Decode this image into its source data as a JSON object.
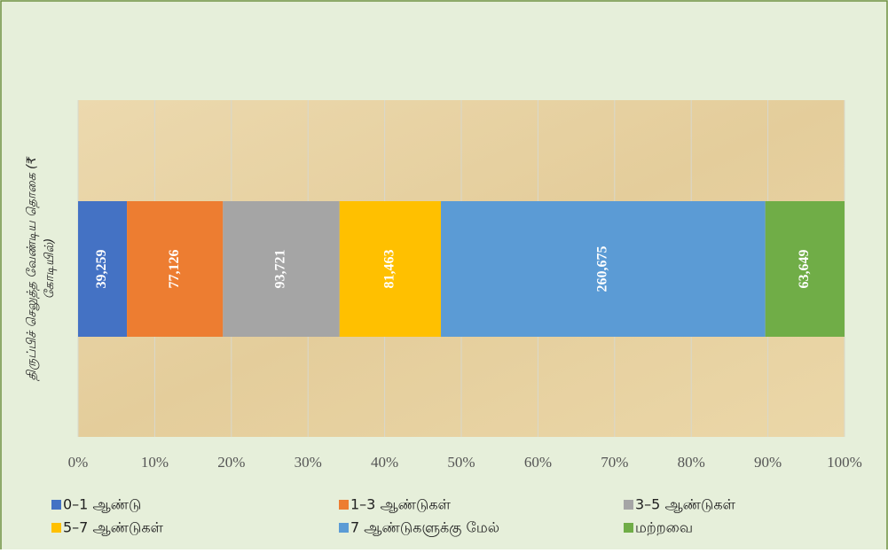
{
  "chart_data": {
    "type": "bar",
    "orientation": "horizontal",
    "stacking": "percent",
    "y_label": [
      "திருப்பிச் செலுத்த வேண்டிய தொகை (₹",
      "கோடியில்)"
    ],
    "categories": [
      null
    ],
    "series": [
      {
        "name": "0–1 ஆண்டு",
        "color": "#4472c4",
        "values": [
          39259
        ],
        "value_labels": [
          "39,259"
        ]
      },
      {
        "name": "1–3 ஆண்டுகள்",
        "color": "#ed7d31",
        "values": [
          77126
        ],
        "value_labels": [
          "77,126"
        ]
      },
      {
        "name": "3–5 ஆண்டுகள்",
        "color": "#a5a5a5",
        "values": [
          93721
        ],
        "value_labels": [
          "93,721"
        ]
      },
      {
        "name": "5–7 ஆண்டுகள்",
        "color": "#ffc000",
        "values": [
          81463
        ],
        "value_labels": [
          "81,463"
        ]
      },
      {
        "name": "7 ஆண்டுகளுக்கு மேல்",
        "color": "#5b9bd5",
        "values": [
          260675
        ],
        "value_labels": [
          "260,675"
        ]
      },
      {
        "name": "மற்றவை",
        "color": "#70ad47",
        "values": [
          63649
        ],
        "value_labels": [
          "63,649"
        ]
      }
    ],
    "xlim": [
      0,
      100
    ],
    "xticks": [
      {
        "value": 0,
        "label": "0%"
      },
      {
        "value": 10,
        "label": "10%"
      },
      {
        "value": 20,
        "label": "20%"
      },
      {
        "value": 30,
        "label": "30%"
      },
      {
        "value": 40,
        "label": "40%"
      },
      {
        "value": 50,
        "label": "50%"
      },
      {
        "value": 60,
        "label": "60%"
      },
      {
        "value": 70,
        "label": "70%"
      },
      {
        "value": 80,
        "label": "80%"
      },
      {
        "value": 90,
        "label": "90%"
      },
      {
        "value": 100,
        "label": "100%"
      }
    ],
    "grid": true,
    "legend": "bottom"
  }
}
